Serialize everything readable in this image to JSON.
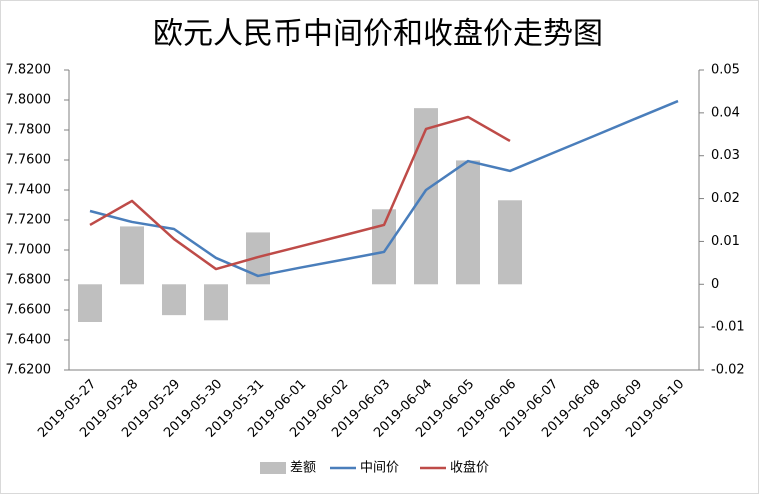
{
  "chart_data": {
    "type": "bar-line",
    "title": "欧元人民币中间价和收盘价走势图",
    "categories": [
      "2019-05-27",
      "2019-05-28",
      "2019-05-29",
      "2019-05-30",
      "2019-05-31",
      "2019-06-01",
      "2019-06-02",
      "2019-06-03",
      "2019-06-04",
      "2019-06-05",
      "2019-06-06",
      "2019-06-07",
      "2019-06-08",
      "2019-06-09",
      "2019-06-10"
    ],
    "series": [
      {
        "name": "差额",
        "type": "bar",
        "axis": "y2",
        "color": "#bfbfbf",
        "values": [
          -0.0088,
          0.0135,
          -0.0072,
          -0.0084,
          0.0121,
          null,
          null,
          0.0175,
          0.0411,
          0.0289,
          0.0196,
          null,
          null,
          null,
          null
        ]
      },
      {
        "name": "中间价",
        "type": "line",
        "color": "#4a7ebb",
        "values": [
          7.726,
          7.7187,
          7.714,
          7.6947,
          7.6827,
          7.6882,
          7.6934,
          7.6987,
          7.74,
          7.7593,
          7.7527,
          7.7644,
          7.776,
          7.7877,
          7.7993
        ]
      },
      {
        "name": "收盘价",
        "type": "line",
        "color": "#be4b48",
        "values": [
          7.7167,
          7.7327,
          7.7073,
          7.6873,
          7.6953,
          7.7024,
          7.7095,
          7.7167,
          7.7807,
          7.7887,
          7.7727,
          null,
          null,
          null,
          null
        ]
      }
    ],
    "ylim": [
      7.62,
      7.82
    ],
    "yticks": [
      {
        "value": 7.62,
        "label": "7.6200"
      },
      {
        "value": 7.64,
        "label": "7.6400"
      },
      {
        "value": 7.66,
        "label": "7.6600"
      },
      {
        "value": 7.68,
        "label": "7.6800"
      },
      {
        "value": 7.7,
        "label": "7.7000"
      },
      {
        "value": 7.72,
        "label": "7.7200"
      },
      {
        "value": 7.74,
        "label": "7.7400"
      },
      {
        "value": 7.76,
        "label": "7.7600"
      },
      {
        "value": 7.78,
        "label": "7.7800"
      },
      {
        "value": 7.8,
        "label": "7.8000"
      },
      {
        "value": 7.82,
        "label": "7.8200"
      }
    ],
    "y2lim": [
      -0.02,
      0.05
    ],
    "y2ticks": [
      -0.02,
      -0.01,
      0,
      0.01,
      0.02,
      0.03,
      0.04,
      0.05
    ],
    "legend": "bottom"
  }
}
